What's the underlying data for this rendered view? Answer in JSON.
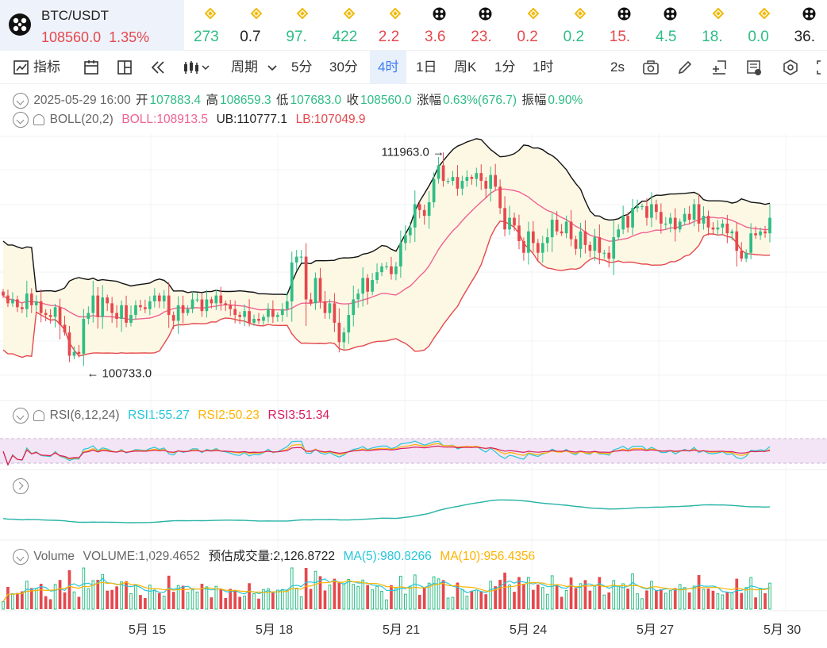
{
  "header": {
    "symbol": "BTC/USDT",
    "price": "108560.0",
    "change": "1.35%",
    "tickers": [
      {
        "value": "273",
        "color": "#2ebd85",
        "icon": "bnb-icon"
      },
      {
        "value": "0.7",
        "color": "#222222",
        "icon": "bnb-icon"
      },
      {
        "value": "97.",
        "color": "#2ebd85",
        "icon": "bnb-icon"
      },
      {
        "value": "422",
        "color": "#2ebd85",
        "icon": "bnb-icon"
      },
      {
        "value": "2.2",
        "color": "#e5484d",
        "icon": "bnb-icon"
      },
      {
        "value": "3.6",
        "color": "#e5484d",
        "icon": "coin-icon"
      },
      {
        "value": "23.",
        "color": "#e5484d",
        "icon": "coin-icon"
      },
      {
        "value": "0.2",
        "color": "#e5484d",
        "icon": "bnb-icon"
      },
      {
        "value": "0.2",
        "color": "#2ebd85",
        "icon": "bnb-icon"
      },
      {
        "value": "15.",
        "color": "#e5484d",
        "icon": "coin-icon"
      },
      {
        "value": "4.5",
        "color": "#2ebd85",
        "icon": "coin-icon"
      },
      {
        "value": "18.",
        "color": "#2ebd85",
        "icon": "bnb-icon"
      },
      {
        "value": "0.0",
        "color": "#2ebd85",
        "icon": "bnb-icon"
      },
      {
        "value": "36.",
        "color": "#222222",
        "icon": "coin-icon"
      }
    ]
  },
  "toolbar": {
    "indicators": "指标",
    "period": "周期",
    "intervals": [
      "5分",
      "30分",
      "4时",
      "1日",
      "周K",
      "1分",
      "1时"
    ],
    "active_interval": "4时",
    "refresh": "2s"
  },
  "ohlc": {
    "date": "2025-05-29 16:00",
    "open_label": "开",
    "open": "107883.4",
    "high_label": "高",
    "high": "108659.3",
    "low_label": "低",
    "low": "107683.0",
    "close_label": "收",
    "close": "108560.0",
    "change_label": "涨幅",
    "change": "0.63%(676.7)",
    "amp_label": "振幅",
    "amp": "0.90%"
  },
  "boll": {
    "name": "BOLL(20,2)",
    "mid": "BOLL:108913.5",
    "ub": "UB:110777.1",
    "lb": "LB:107049.9"
  },
  "rsi": {
    "name": "RSI(6,12,24)",
    "rsi1": "RSI1:55.27",
    "rsi2": "RSI2:50.23",
    "rsi3": "RSI3:51.34"
  },
  "volume": {
    "name": "Volume",
    "value": "VOLUME:1,029.4652",
    "estimate": "预估成交量:2,126.8722",
    "ma5": "MA(5):980.8266",
    "ma10": "MA(10):956.4356"
  },
  "colors": {
    "up": "#2ebd85",
    "down": "#e5484d",
    "boll_mid": "#f06292",
    "band_fill": "#fdf8e4",
    "rsi1": "#26c6da",
    "rsi2": "#ffb300",
    "rsi3": "#d81b60",
    "rsi_band": "#f3e5f5"
  },
  "chart_data": {
    "type": "candlestick",
    "x_ticks": [
      "5月 15",
      "5月 18",
      "5月 21",
      "5月 24",
      "5月 27",
      "5月 30"
    ],
    "high_marker": "111963.0",
    "low_marker": "100733.0",
    "close_series": [
      104600,
      104200,
      104400,
      104000,
      103900,
      104700,
      104100,
      104300,
      103700,
      103600,
      103500,
      104000,
      103100,
      102700,
      101500,
      101700,
      101600,
      103400,
      103700,
      104600,
      103500,
      104500,
      104200,
      103700,
      103400,
      104100,
      103200,
      103600,
      104100,
      104000,
      103900,
      104300,
      104600,
      104300,
      104600,
      103600,
      103300,
      104100,
      103700,
      103900,
      104400,
      104400,
      103800,
      104400,
      104200,
      104600,
      104200,
      104100,
      103900,
      103600,
      103500,
      103800,
      103200,
      103400,
      103300,
      103500,
      103900,
      103500,
      103600,
      103900,
      104300,
      106300,
      106600,
      106600,
      104400,
      104200,
      105500,
      104300,
      103700,
      104200,
      103200,
      102200,
      102700,
      103600,
      104400,
      104700,
      105500,
      104800,
      105400,
      105800,
      106100,
      106100,
      105700,
      106100,
      107300,
      107700,
      108100,
      109300,
      109000,
      108700,
      109400,
      110600,
      111300,
      110500,
      110500,
      110700,
      110100,
      110500,
      110700,
      110600,
      110900,
      110500,
      110100,
      110800,
      110200,
      109100,
      108000,
      108600,
      108200,
      107400,
      106800,
      107900,
      107300,
      106800,
      107300,
      107600,
      108500,
      107900,
      107800,
      108400,
      107500,
      107000,
      107900,
      107200,
      106900,
      107600,
      106800,
      106800,
      106500,
      107600,
      108000,
      108700,
      108100,
      109100,
      109200,
      109200,
      108600,
      109300,
      108900,
      108300,
      108300,
      108600,
      108000,
      108400,
      108800,
      108500,
      109300,
      108300,
      108700,
      108100,
      108000,
      108100,
      108300,
      107800,
      107900,
      106900,
      106500,
      106800,
      107800,
      107700,
      107900,
      107800,
      108600
    ],
    "rsi_range": [
      0,
      100
    ],
    "volume_scale": "relative"
  }
}
